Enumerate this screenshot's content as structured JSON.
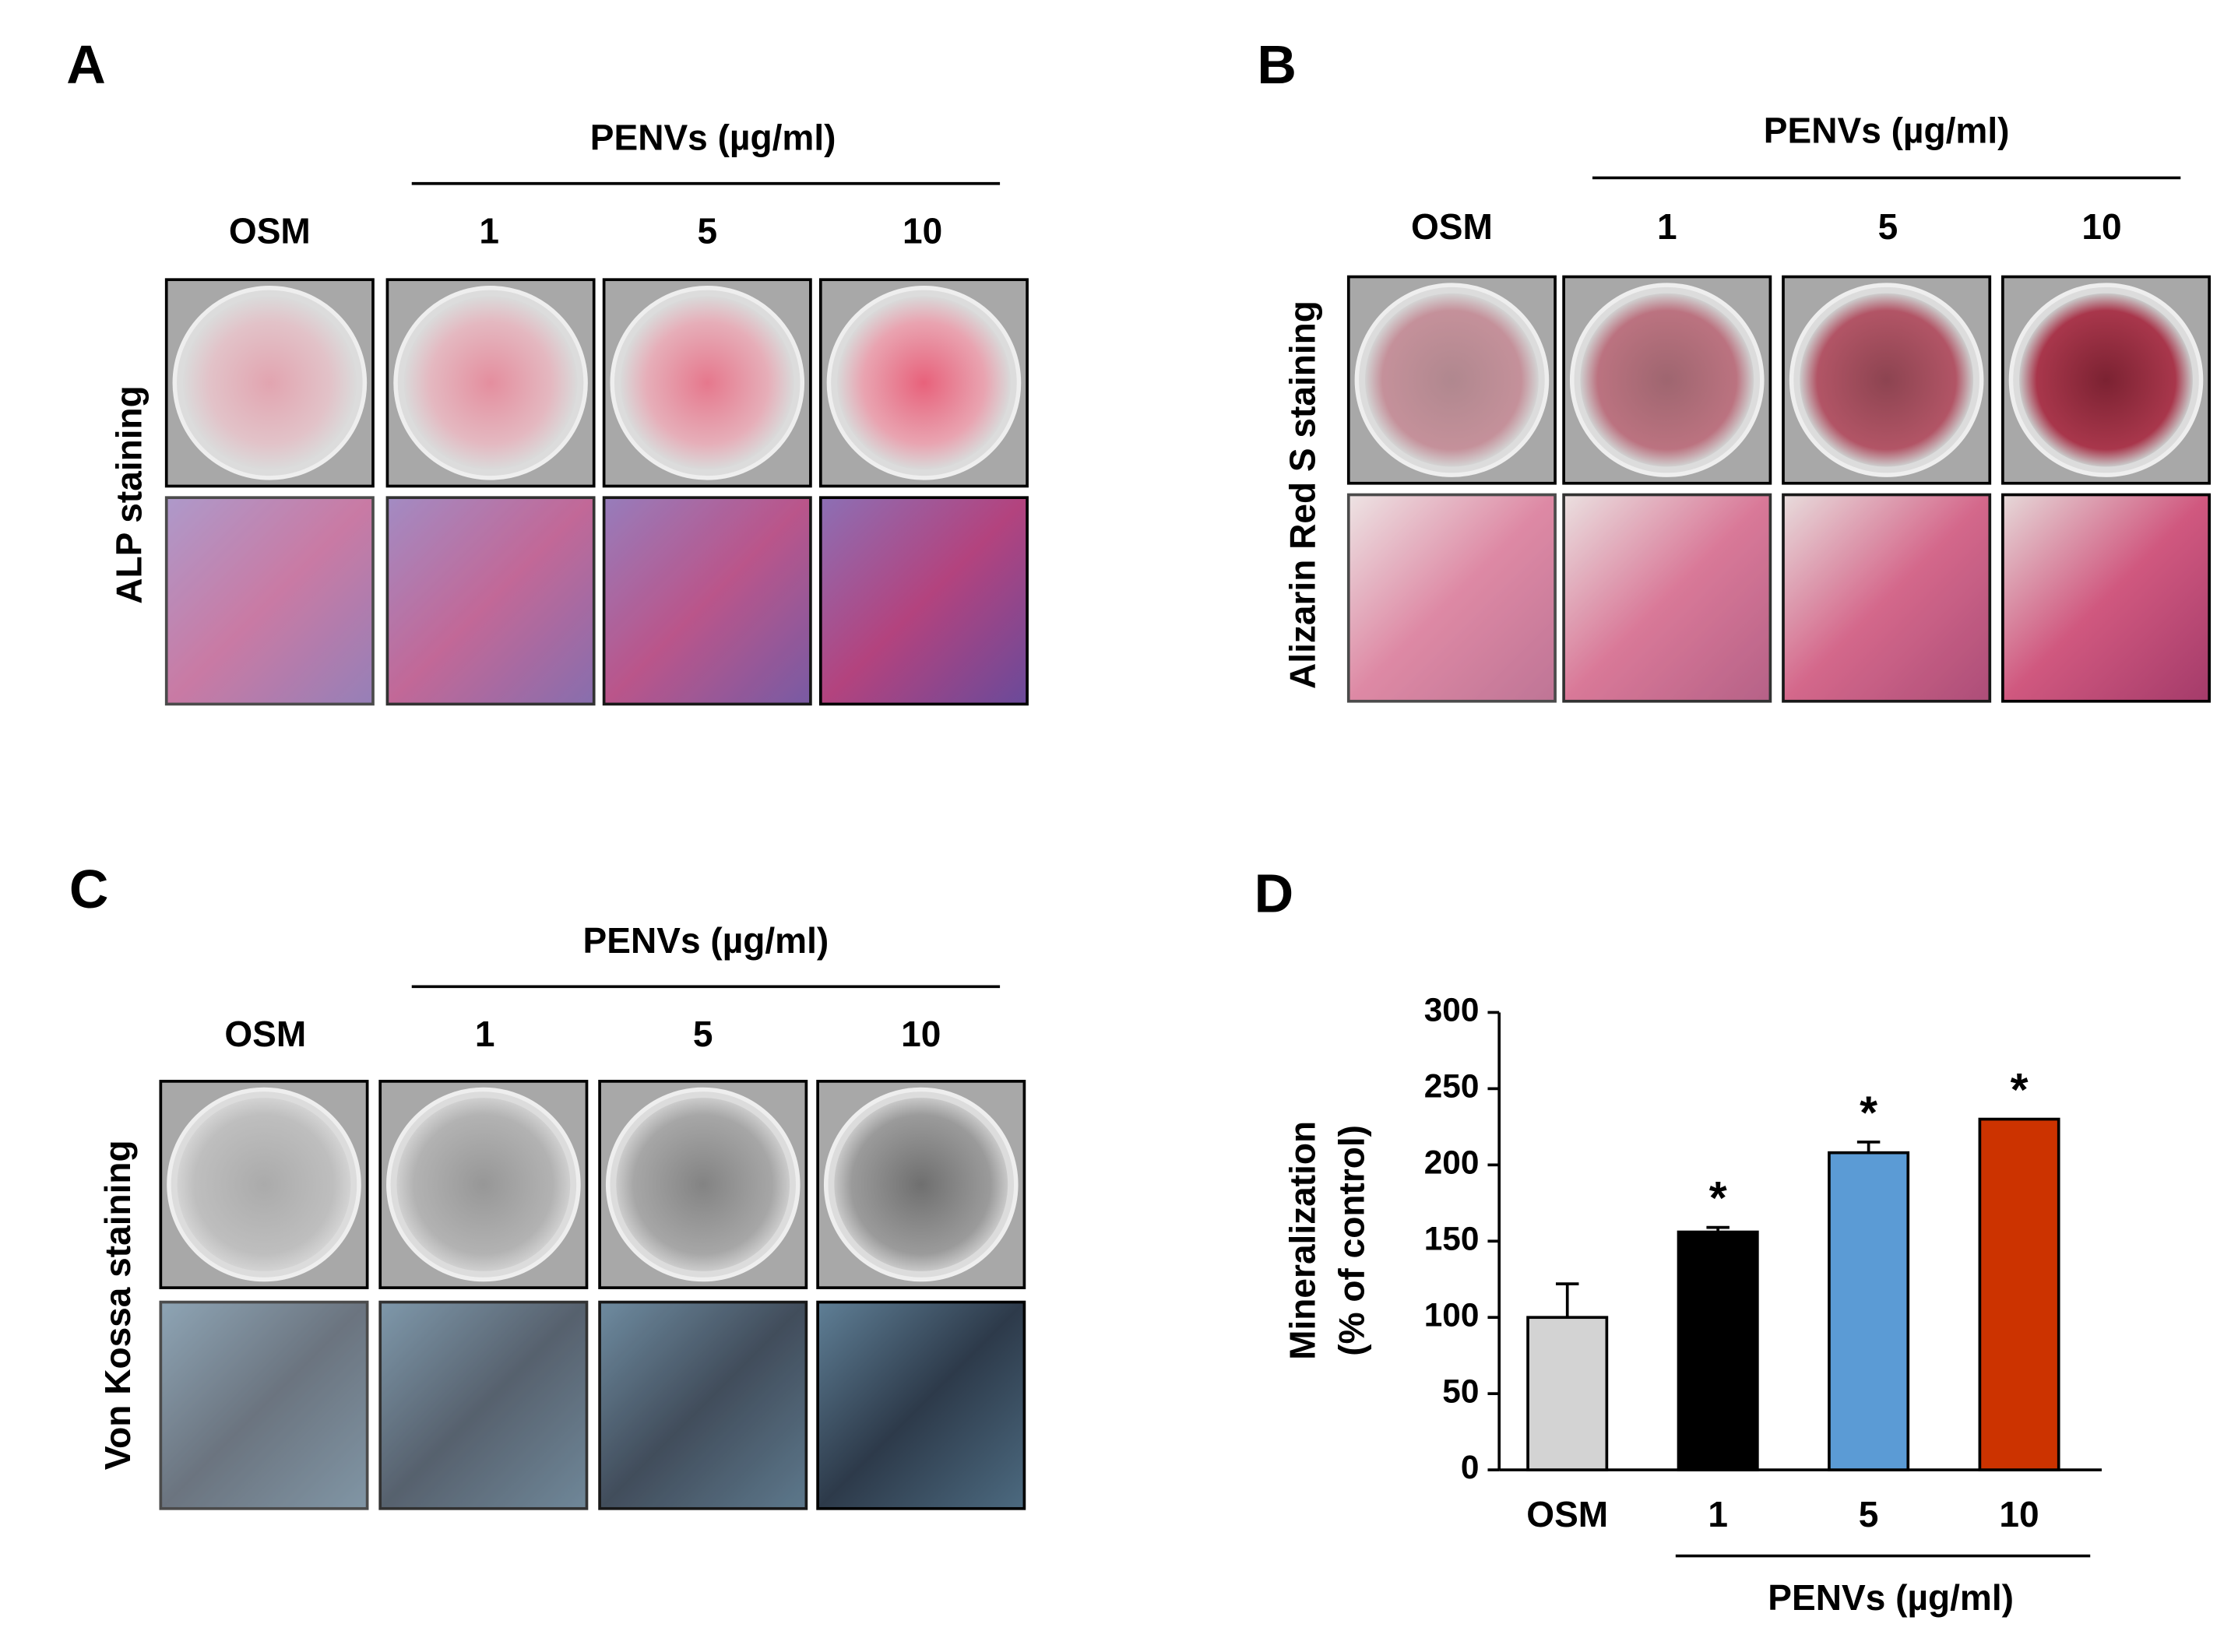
{
  "panels": [
    {
      "letter": "A",
      "group_label": "PENVs (µg/ml)",
      "columns": [
        "OSM",
        "1",
        "5",
        "10"
      ],
      "row_label": "ALP staining"
    },
    {
      "letter": "B",
      "group_label": "PENVs (µg/ml)",
      "columns": [
        "OSM",
        "1",
        "5",
        "10"
      ],
      "row_label": "Alizarin Red S staining"
    },
    {
      "letter": "C",
      "group_label": "PENVs (µg/ml)",
      "columns": [
        "OSM",
        "1",
        "5",
        "10"
      ],
      "row_label": "Von Kossa staining"
    }
  ],
  "chart_data": {
    "type": "bar",
    "label": "D",
    "categories": [
      "OSM",
      "1",
      "5",
      "10"
    ],
    "values": [
      100,
      156,
      208,
      230
    ],
    "errors": [
      22,
      3,
      7,
      null
    ],
    "colors": [
      "#d3d3d3",
      "#000000",
      "#5b9bd5",
      "#cc3300"
    ],
    "significance": [
      null,
      "*",
      "*",
      "*"
    ],
    "y_label": [
      "Mineralization",
      "(% of control)"
    ],
    "group_label": "PENVs (µg/ml)",
    "ylim": [
      0,
      300
    ],
    "yticks": [
      0,
      50,
      100,
      150,
      200,
      250,
      300
    ],
    "grid": false
  }
}
